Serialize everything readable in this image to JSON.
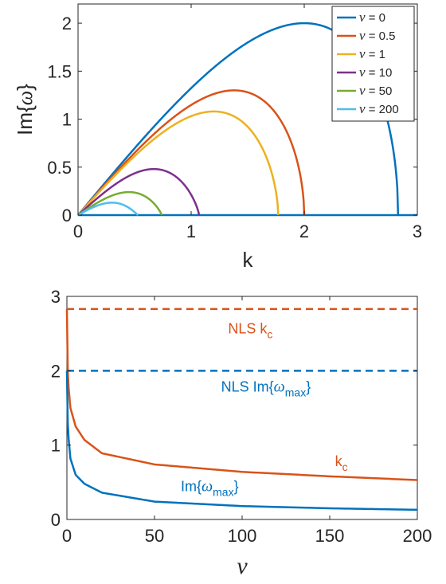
{
  "chart_data": [
    {
      "type": "line",
      "xlabel": "k",
      "ylabel": "Im{ω}",
      "xlim": [
        0,
        3
      ],
      "ylim": [
        0,
        2.2
      ],
      "xticks": [
        "0",
        "1",
        "2",
        "3"
      ],
      "yticks": [
        "0",
        "0.5",
        "1",
        "1.5",
        "2"
      ],
      "legend_position": "top-right",
      "series": [
        {
          "name": "ν = 0",
          "color": "#0072BD",
          "k_cutoff": 2.83,
          "peak_k": 2.0,
          "peak_value": 2.0
        },
        {
          "name": "ν = 0.5",
          "color": "#D95319",
          "k_cutoff": 2.0,
          "peak_k": 1.38,
          "peak_value": 1.3
        },
        {
          "name": "ν = 1",
          "color": "#EDB120",
          "k_cutoff": 1.77,
          "peak_k": 1.2,
          "peak_value": 1.08
        },
        {
          "name": "ν = 10",
          "color": "#7E2F8E",
          "k_cutoff": 1.07,
          "peak_k": 0.67,
          "peak_value": 0.48
        },
        {
          "name": "ν = 50",
          "color": "#77AC30",
          "k_cutoff": 0.74,
          "peak_k": 0.45,
          "peak_value": 0.24
        },
        {
          "name": "ν = 200",
          "color": "#4DBEEE",
          "k_cutoff": 0.53,
          "peak_k": 0.3,
          "peak_value": 0.13
        }
      ]
    },
    {
      "type": "line",
      "xlabel": "ν",
      "ylabel": "",
      "xlim": [
        0,
        200
      ],
      "ylim": [
        0,
        3
      ],
      "xticks": [
        "0",
        "50",
        "100",
        "150",
        "200"
      ],
      "yticks": [
        "0",
        "1",
        "2",
        "3"
      ],
      "series": [
        {
          "name": "k_c",
          "color": "#D95319",
          "style": "solid",
          "x": [
            0,
            0.5,
            1,
            2,
            5,
            10,
            20,
            50,
            100,
            150,
            200
          ],
          "y": [
            2.83,
            2.0,
            1.77,
            1.5,
            1.25,
            1.07,
            0.89,
            0.74,
            0.64,
            0.58,
            0.53
          ]
        },
        {
          "name": "Im{ω_max}",
          "color": "#0072BD",
          "style": "solid",
          "x": [
            0,
            0.5,
            1,
            2,
            5,
            10,
            20,
            50,
            100,
            150,
            200
          ],
          "y": [
            2.0,
            1.3,
            1.08,
            0.82,
            0.6,
            0.48,
            0.36,
            0.24,
            0.18,
            0.15,
            0.13
          ]
        },
        {
          "name": "NLS k_c",
          "color": "#D95319",
          "style": "dashed",
          "x": [
            0,
            200
          ],
          "y": [
            2.83,
            2.83
          ]
        },
        {
          "name": "NLS Im{ω_max}",
          "color": "#0072BD",
          "style": "dashed",
          "x": [
            0,
            200
          ],
          "y": [
            2.0,
            2.0
          ]
        }
      ],
      "annotations": [
        {
          "main": "NLS k",
          "sub": "c",
          "after": "",
          "color": "#D95319",
          "x": 92,
          "y": 2.5
        },
        {
          "main": "NLS Im{",
          "greek": "ω",
          "sub": "max",
          "after": "}",
          "color": "#0072BD",
          "x": 88,
          "y": 1.72
        },
        {
          "main": "k",
          "sub": "c",
          "after": "",
          "color": "#D95319",
          "x": 153,
          "y": 0.72
        },
        {
          "main": "Im{",
          "greek": "ω",
          "sub": "max",
          "after": "}",
          "color": "#0072BD",
          "x": 65,
          "y": 0.38
        }
      ]
    }
  ]
}
